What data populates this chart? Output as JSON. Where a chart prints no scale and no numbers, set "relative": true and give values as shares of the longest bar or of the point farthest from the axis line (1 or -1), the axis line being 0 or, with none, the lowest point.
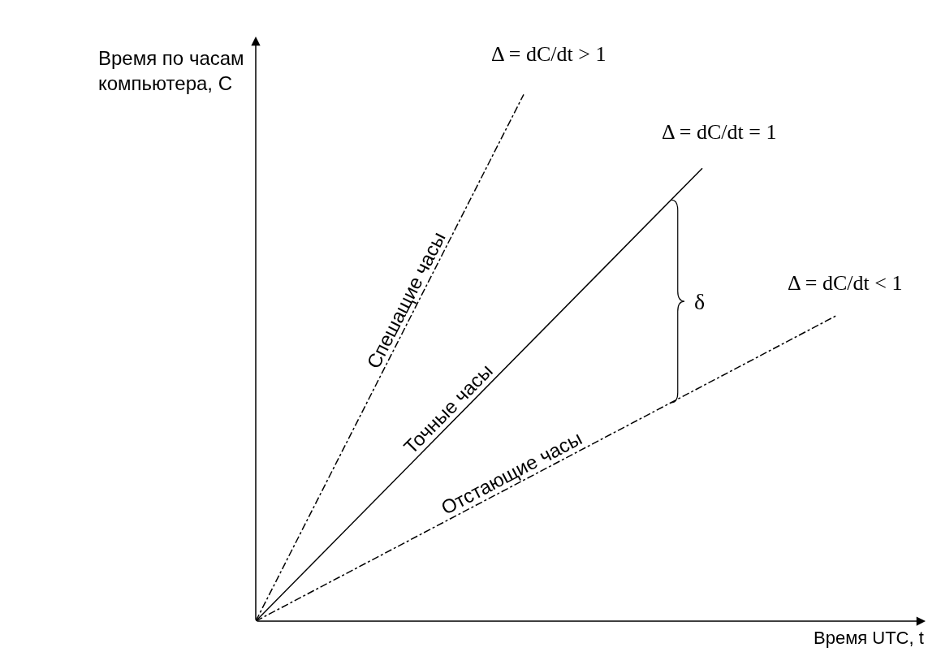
{
  "chart_data": {
    "type": "line",
    "relative": true,
    "xlabel": "Время UTC, t",
    "ylabel": "Время по часам компьютера, C",
    "categories": [
      null,
      null,
      null,
      null,
      null,
      null,
      null,
      null,
      null,
      null,
      null,
      null,
      null,
      null,
      null,
      null
    ],
    "series": [
      {
        "name": "Спешащие часы",
        "color": "#000000",
        "line_style": "dashed",
        "values": [
          0,
          null,
          null,
          null,
          null,
          null,
          1,
          null,
          null,
          null,
          null,
          null,
          null,
          null,
          null,
          null
        ]
      },
      {
        "name": "Точные часы",
        "color": "#000000",
        "line_style": "solid",
        "values": [
          0,
          null,
          null,
          null,
          null,
          null,
          null,
          null,
          null,
          null,
          0.86,
          null,
          null,
          null,
          null,
          null
        ]
      },
      {
        "name": "Отстающие часы",
        "color": "#000000",
        "line_style": "dashed",
        "values": [
          0,
          null,
          null,
          null,
          null,
          null,
          null,
          null,
          null,
          null,
          null,
          null,
          null,
          0.58,
          null,
          null
        ]
      }
    ],
    "annotations": [
      "Δ = dC/dt > 1",
      "Δ = dC/dt = 1",
      "Δ = dC/dt < 1",
      "δ"
    ],
    "legend": false,
    "marker": "none"
  }
}
